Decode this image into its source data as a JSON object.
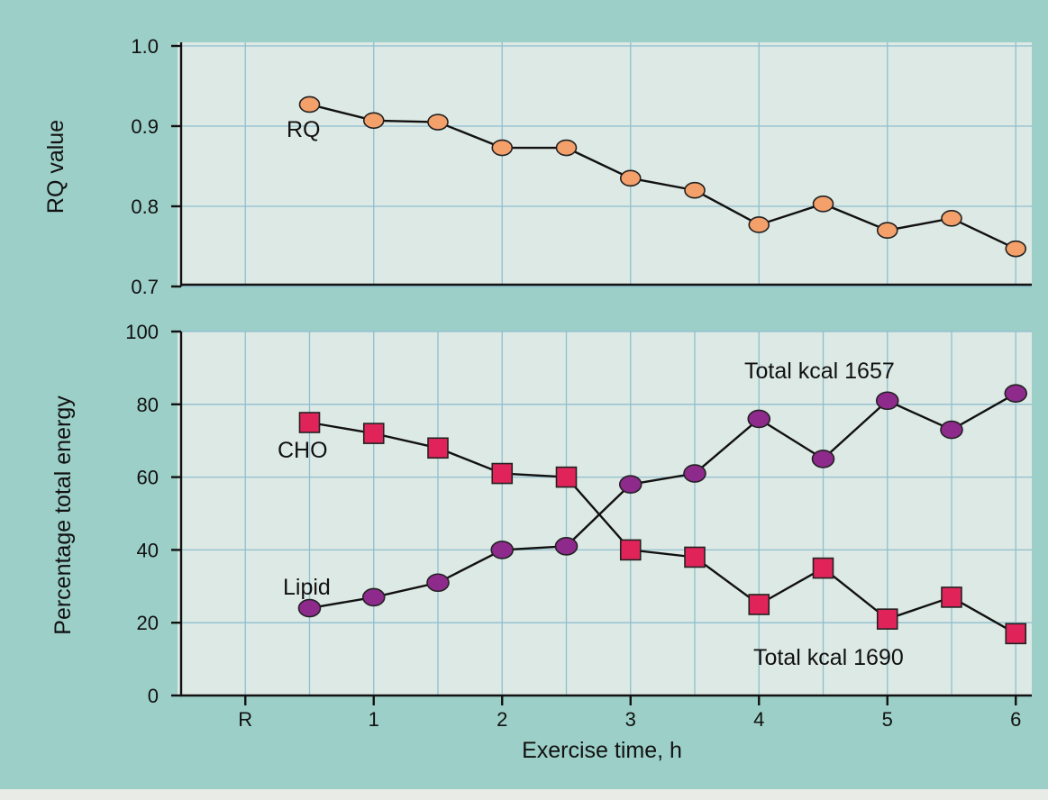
{
  "chart_data": [
    {
      "type": "line",
      "title": "",
      "xlabel": "",
      "ylabel": "RQ value",
      "ylim": [
        0.7,
        1.0
      ],
      "yticks": [
        "0.7",
        "0.8",
        "0.9",
        "1.0"
      ],
      "grid": true,
      "series": [
        {
          "name": "RQ",
          "marker": "circle",
          "color": "#f4a06a",
          "x": [
            0.5,
            1,
            1.5,
            2,
            2.5,
            3,
            3.5,
            4,
            4.5,
            5,
            5.5,
            6
          ],
          "values": [
            0.927,
            0.907,
            0.905,
            0.873,
            0.873,
            0.835,
            0.82,
            0.777,
            0.803,
            0.77,
            0.785,
            0.747
          ]
        }
      ],
      "annotations": [
        "RQ"
      ]
    },
    {
      "type": "line",
      "title": "",
      "xlabel": "Exercise time, h",
      "ylabel": "Percentage total energy",
      "ylim": [
        0,
        100
      ],
      "xlim": [
        -0.5,
        6
      ],
      "xticks": [
        "R",
        "1",
        "2",
        "3",
        "4",
        "5",
        "6"
      ],
      "yticks": [
        "0",
        "20",
        "40",
        "60",
        "80",
        "100"
      ],
      "grid": true,
      "series": [
        {
          "name": "CHO",
          "marker": "square",
          "color": "#e0245a",
          "x": [
            0.5,
            1,
            1.5,
            2,
            2.5,
            3,
            3.5,
            4,
            4.5,
            5,
            5.5,
            6
          ],
          "values": [
            75,
            72,
            68,
            61,
            60,
            40,
            38,
            25,
            35,
            21,
            27,
            17
          ]
        },
        {
          "name": "Lipid",
          "marker": "circle",
          "color": "#8e2a8c",
          "x": [
            0.5,
            1,
            1.5,
            2,
            2.5,
            3,
            3.5,
            4,
            4.5,
            5,
            5.5,
            6
          ],
          "values": [
            24,
            27,
            31,
            40,
            41,
            58,
            61,
            76,
            65,
            81,
            73,
            83
          ]
        }
      ],
      "annotations": [
        "CHO",
        "Lipid",
        "Total kcal 1657",
        "Total kcal 1690"
      ]
    }
  ],
  "colors": {
    "background": "#9ccfc8",
    "plot_background": "#dde9e4",
    "grid": "#8fbfd0"
  }
}
